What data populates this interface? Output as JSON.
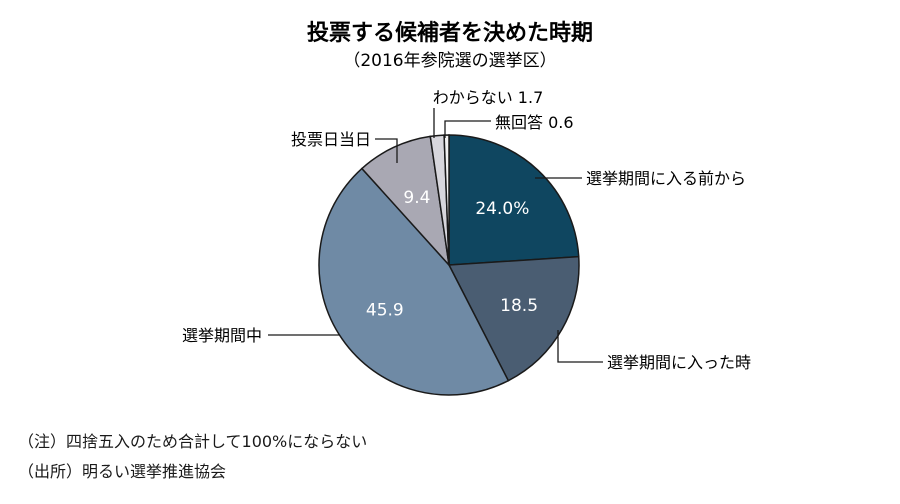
{
  "chart_data": {
    "type": "pie",
    "title": "投票する候補者を決めた時期",
    "subtitle": "（2016年参院選の選挙区）",
    "slices": [
      {
        "label": "選挙期間に入る前から",
        "value": 24.0,
        "value_text": "24.0%",
        "color": "#0f4660"
      },
      {
        "label": "選挙期間に入った時",
        "value": 18.5,
        "value_text": "18.5",
        "color": "#4a5d72"
      },
      {
        "label": "選挙期間中",
        "value": 45.9,
        "value_text": "45.9",
        "color": "#6f8aa5"
      },
      {
        "label": "投票日当日",
        "value": 9.4,
        "value_text": "9.4",
        "color": "#a9a8b3"
      },
      {
        "label": "わからない",
        "value": 1.7,
        "value_text": "1.7",
        "color": "#d7d6dc"
      },
      {
        "label": "無回答",
        "value": 0.6,
        "value_text": "0.6",
        "color": "#f2f2f2"
      }
    ]
  },
  "notes": {
    "note1": "（注）四捨五入のため合計して100%にならない",
    "source": "（出所）明るい選挙推進協会"
  }
}
